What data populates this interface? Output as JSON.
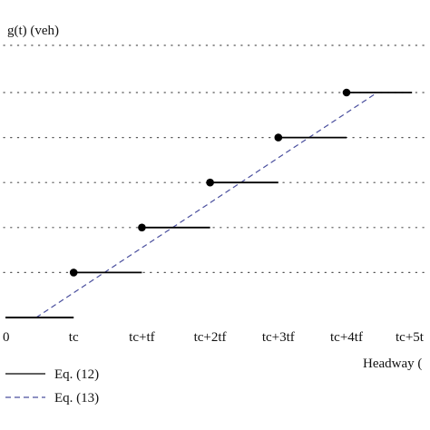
{
  "chart_data": {
    "type": "line",
    "ylabel": "g(t) (veh)",
    "xlabel": "Headway (",
    "x_tick_labels": [
      "0",
      "tc",
      "tc+tf",
      "tc+2tf",
      "tc+3tf",
      "tc+4tf",
      "tc+5t"
    ],
    "x_tick_values": [
      0,
      1,
      2,
      3,
      4,
      5,
      6
    ],
    "xlim": [
      0,
      6
    ],
    "ylim": [
      0,
      5.2
    ],
    "grid": "horizontal dotted lines at y = 1..5",
    "legend_placement": "bottom-left",
    "series": [
      {
        "name": "Eq. (12)",
        "style": "solid step",
        "steps": [
          {
            "x_start": 0,
            "x_end": 1,
            "y": 0,
            "closed_dot": false
          },
          {
            "x_start": 1,
            "x_end": 2,
            "y": 1,
            "closed_dot": true
          },
          {
            "x_start": 2,
            "x_end": 3,
            "y": 2,
            "closed_dot": true
          },
          {
            "x_start": 3,
            "x_end": 4,
            "y": 3,
            "closed_dot": true
          },
          {
            "x_start": 4,
            "x_end": 5,
            "y": 4,
            "closed_dot": true
          },
          {
            "x_start": 5,
            "x_end": 6,
            "y": 5,
            "closed_dot": true
          }
        ]
      },
      {
        "name": "Eq. (13)",
        "style": "dashed line",
        "x": [
          0.45,
          5.45
        ],
        "y": [
          0,
          5
        ]
      }
    ],
    "colors": {
      "eq12": "#000000",
      "eq13": "#4a4f9e",
      "grid": "#555555"
    }
  }
}
